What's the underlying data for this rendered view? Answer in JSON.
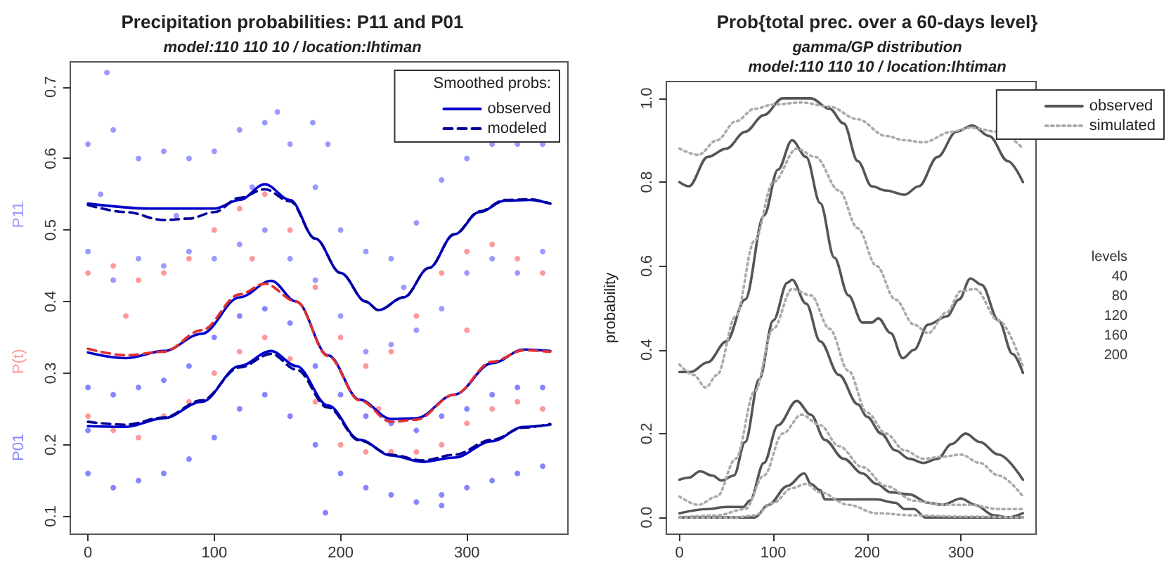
{
  "chart_data": [
    {
      "type": "scatter",
      "title": "Precipitation probabilities: P11 and P01",
      "subtitle": "model:110 110 10 / location:Ihtiman",
      "xlim": [
        -14,
        380
      ],
      "xticks": [
        0,
        100,
        200,
        300
      ],
      "ylim": [
        0.075,
        0.735
      ],
      "yticks": [
        0.1,
        0.2,
        0.3,
        0.4,
        0.5,
        0.6,
        0.7
      ],
      "grid": false,
      "legend": "top right",
      "legend_title": "Smoothed probs:",
      "series": [
        {
          "name": "P11",
          "marker": "circle",
          "color": "#9999ff",
          "x": [
            0,
            0,
            20,
            20,
            40,
            40,
            60,
            60,
            80,
            80,
            100,
            100,
            120,
            120,
            140,
            140,
            160,
            160,
            180,
            180,
            200,
            200,
            220,
            220,
            240,
            240,
            260,
            260,
            280,
            280,
            300,
            300,
            320,
            320,
            340,
            340,
            360,
            360,
            15,
            150,
            178,
            190,
            10,
            70,
            130,
            250
          ],
          "values": [
            0.62,
            0.47,
            0.64,
            0.43,
            0.6,
            0.46,
            0.61,
            0.45,
            0.6,
            0.47,
            0.61,
            0.46,
            0.64,
            0.48,
            0.65,
            0.5,
            0.62,
            0.46,
            0.56,
            0.43,
            0.5,
            0.38,
            0.47,
            0.33,
            0.46,
            0.34,
            0.51,
            0.36,
            0.57,
            0.39,
            0.6,
            0.44,
            0.62,
            0.46,
            0.62,
            0.44,
            0.62,
            0.47,
            0.72,
            0.665,
            0.65,
            0.62,
            0.55,
            0.52,
            0.56,
            0.42
          ]
        },
        {
          "name": "P(t)",
          "marker": "circle",
          "color": "#ff9999",
          "x": [
            0,
            0,
            20,
            20,
            40,
            40,
            60,
            60,
            80,
            80,
            100,
            100,
            120,
            120,
            140,
            140,
            160,
            160,
            180,
            180,
            200,
            200,
            220,
            220,
            240,
            240,
            260,
            260,
            280,
            280,
            300,
            300,
            320,
            320,
            340,
            340,
            360,
            360,
            30,
            130,
            230,
            300
          ],
          "values": [
            0.44,
            0.24,
            0.45,
            0.22,
            0.43,
            0.21,
            0.44,
            0.24,
            0.46,
            0.26,
            0.5,
            0.3,
            0.53,
            0.33,
            0.55,
            0.35,
            0.5,
            0.32,
            0.42,
            0.26,
            0.35,
            0.2,
            0.31,
            0.19,
            0.33,
            0.19,
            0.38,
            0.19,
            0.44,
            0.2,
            0.47,
            0.23,
            0.48,
            0.25,
            0.46,
            0.26,
            0.44,
            0.25,
            0.38,
            0.46,
            0.25,
            0.36
          ]
        },
        {
          "name": "P01",
          "marker": "circle",
          "color": "#8585ff",
          "x": [
            0,
            0,
            0,
            20,
            20,
            40,
            40,
            60,
            60,
            80,
            80,
            100,
            100,
            120,
            120,
            140,
            140,
            160,
            160,
            180,
            180,
            200,
            200,
            220,
            220,
            240,
            240,
            260,
            260,
            280,
            280,
            300,
            300,
            320,
            320,
            340,
            340,
            360,
            360,
            188,
            280
          ],
          "values": [
            0.28,
            0.22,
            0.16,
            0.27,
            0.14,
            0.28,
            0.15,
            0.29,
            0.16,
            0.31,
            0.18,
            0.35,
            0.21,
            0.38,
            0.25,
            0.39,
            0.27,
            0.37,
            0.24,
            0.31,
            0.2,
            0.27,
            0.16,
            0.24,
            0.14,
            0.23,
            0.13,
            0.22,
            0.12,
            0.24,
            0.13,
            0.25,
            0.14,
            0.27,
            0.15,
            0.28,
            0.16,
            0.28,
            0.17,
            0.105,
            0.115
          ]
        },
        {
          "name": "observed",
          "type": "line",
          "marker": "none",
          "line_style": "solid",
          "color": "#0000cc",
          "x": [
            0,
            50,
            100,
            120,
            140,
            160,
            180,
            200,
            220,
            230,
            250,
            270,
            290,
            310,
            330,
            350,
            366
          ],
          "values": [
            0.537,
            0.53,
            0.53,
            0.542,
            0.564,
            0.542,
            0.488,
            0.44,
            0.4,
            0.388,
            0.406,
            0.447,
            0.494,
            0.525,
            0.541,
            0.542,
            0.537
          ]
        },
        {
          "name": "modeled",
          "type": "line",
          "marker": "none",
          "line_style": "dashed",
          "color": "#000099",
          "x": [
            0,
            30,
            60,
            80,
            100,
            120,
            140,
            160,
            180,
            200,
            220,
            230,
            250,
            270,
            290,
            310,
            330,
            350,
            366
          ],
          "values": [
            0.535,
            0.525,
            0.514,
            0.516,
            0.525,
            0.545,
            0.557,
            0.54,
            0.488,
            0.44,
            0.4,
            0.388,
            0.406,
            0.447,
            0.494,
            0.526,
            0.542,
            0.543,
            0.537
          ]
        },
        {
          "type": "line",
          "marker": "none",
          "line_style": "solid",
          "color": "#0000cc",
          "x": [
            0,
            30,
            60,
            90,
            120,
            145,
            165,
            190,
            215,
            240,
            260,
            290,
            320,
            345,
            366
          ],
          "values": [
            0.329,
            0.321,
            0.331,
            0.355,
            0.406,
            0.429,
            0.4,
            0.325,
            0.263,
            0.236,
            0.237,
            0.27,
            0.314,
            0.333,
            0.331
          ]
        },
        {
          "type": "line",
          "marker": "none",
          "line_style": "dashed",
          "color": "#e03030",
          "x": [
            0,
            30,
            60,
            90,
            120,
            140,
            165,
            190,
            215,
            240,
            260,
            290,
            320,
            345,
            366
          ],
          "values": [
            0.334,
            0.325,
            0.33,
            0.36,
            0.41,
            0.425,
            0.4,
            0.324,
            0.262,
            0.232,
            0.235,
            0.27,
            0.316,
            0.332,
            0.33
          ]
        },
        {
          "type": "line",
          "marker": "none",
          "line_style": "solid",
          "color": "#0000cc",
          "x": [
            0,
            30,
            60,
            90,
            120,
            145,
            165,
            190,
            215,
            240,
            265,
            290,
            320,
            345,
            366
          ],
          "values": [
            0.226,
            0.225,
            0.237,
            0.26,
            0.31,
            0.331,
            0.31,
            0.255,
            0.207,
            0.185,
            0.176,
            0.182,
            0.205,
            0.225,
            0.228
          ]
        },
        {
          "type": "line",
          "marker": "none",
          "line_style": "dashed",
          "color": "#000099",
          "x": [
            0,
            30,
            60,
            90,
            120,
            145,
            165,
            190,
            215,
            240,
            265,
            290,
            320,
            345,
            366
          ],
          "values": [
            0.232,
            0.228,
            0.238,
            0.262,
            0.308,
            0.327,
            0.305,
            0.252,
            0.206,
            0.186,
            0.178,
            0.186,
            0.207,
            0.224,
            0.229
          ]
        }
      ]
    },
    {
      "type": "line",
      "title": "Prob{total prec. over a 60-days level}",
      "subtitle": "gamma/GP distribution\nmodel:110 110 10 / location:Ihtiman",
      "ylabel": "probability",
      "xlim": [
        -14,
        380
      ],
      "xticks": [
        0,
        100,
        200,
        300
      ],
      "ylim": [
        -0.04,
        1.04
      ],
      "yticks": [
        {
          "value": 0,
          "label": "0.0"
        },
        0.2,
        0.4,
        0.6,
        0.8,
        {
          "value": 1,
          "label": "1.0"
        }
      ],
      "grid": false,
      "legend": "right",
      "annotations": [
        "levels",
        "40",
        "80",
        "120",
        "160",
        "200"
      ],
      "series": [
        {
          "name": "observed",
          "line_style": "solid",
          "color": "#555555",
          "x": [
            0,
            10,
            30,
            50,
            70,
            90,
            110,
            140,
            160,
            175,
            190,
            205,
            220,
            240,
            255,
            275,
            295,
            312,
            330,
            350,
            366
          ],
          "values": [
            0.8,
            0.79,
            0.86,
            0.88,
            0.92,
            0.96,
            1.0,
            1.0,
            0.975,
            0.94,
            0.85,
            0.79,
            0.78,
            0.77,
            0.79,
            0.86,
            0.92,
            0.935,
            0.91,
            0.85,
            0.8
          ]
        },
        {
          "name": "simulated",
          "line_style": "dotted",
          "color": "#aaaaaa",
          "x": [
            0,
            20,
            40,
            60,
            80,
            100,
            130,
            160,
            190,
            220,
            240,
            260,
            290,
            310,
            340,
            366
          ],
          "values": [
            0.88,
            0.865,
            0.9,
            0.945,
            0.975,
            0.985,
            0.99,
            0.98,
            0.95,
            0.91,
            0.9,
            0.895,
            0.92,
            0.93,
            0.92,
            0.88
          ]
        },
        {
          "line_style": "solid",
          "color": "#555555",
          "x": [
            0,
            12,
            30,
            50,
            70,
            90,
            105,
            120,
            135,
            150,
            165,
            180,
            195,
            205,
            212,
            225,
            238,
            250,
            265,
            285,
            298,
            310,
            322,
            340,
            355,
            366
          ],
          "values": [
            0.347,
            0.347,
            0.37,
            0.42,
            0.52,
            0.72,
            0.83,
            0.9,
            0.86,
            0.75,
            0.62,
            0.53,
            0.465,
            0.465,
            0.475,
            0.44,
            0.38,
            0.4,
            0.46,
            0.48,
            0.52,
            0.57,
            0.555,
            0.47,
            0.39,
            0.345
          ]
        },
        {
          "line_style": "dotted",
          "color": "#aaaaaa",
          "x": [
            0,
            15,
            28,
            40,
            60,
            80,
            100,
            125,
            145,
            170,
            190,
            210,
            230,
            250,
            265,
            285,
            300,
            315,
            340,
            366
          ],
          "values": [
            0.365,
            0.34,
            0.31,
            0.34,
            0.48,
            0.66,
            0.8,
            0.88,
            0.86,
            0.78,
            0.69,
            0.6,
            0.52,
            0.46,
            0.44,
            0.49,
            0.54,
            0.545,
            0.47,
            0.36
          ]
        },
        {
          "line_style": "solid",
          "color": "#555555",
          "x": [
            0,
            10,
            22,
            35,
            45,
            58,
            70,
            85,
            100,
            115,
            120,
            135,
            150,
            170,
            190,
            200,
            215,
            230,
            245,
            260,
            275,
            290,
            305,
            320,
            340,
            366
          ],
          "values": [
            0.09,
            0.095,
            0.11,
            0.1,
            0.088,
            0.1,
            0.18,
            0.33,
            0.47,
            0.56,
            0.567,
            0.51,
            0.42,
            0.34,
            0.27,
            0.24,
            0.2,
            0.16,
            0.14,
            0.13,
            0.14,
            0.175,
            0.2,
            0.18,
            0.15,
            0.09
          ]
        },
        {
          "line_style": "dotted",
          "color": "#aaaaaa",
          "x": [
            0,
            20,
            40,
            60,
            80,
            100,
            120,
            140,
            160,
            180,
            200,
            220,
            240,
            260,
            280,
            300,
            320,
            340,
            366
          ],
          "values": [
            0.05,
            0.03,
            0.05,
            0.14,
            0.3,
            0.45,
            0.545,
            0.53,
            0.45,
            0.35,
            0.25,
            0.2,
            0.16,
            0.14,
            0.145,
            0.15,
            0.13,
            0.1,
            0.05
          ]
        },
        {
          "line_style": "solid",
          "color": "#555555",
          "x": [
            0,
            30,
            50,
            68,
            75,
            90,
            105,
            125,
            140,
            155,
            175,
            195,
            210,
            225,
            245,
            265,
            280,
            300,
            315,
            335,
            350,
            366
          ],
          "values": [
            0.01,
            0.02,
            0.025,
            0.025,
            0.04,
            0.13,
            0.22,
            0.278,
            0.245,
            0.185,
            0.14,
            0.105,
            0.08,
            0.06,
            0.055,
            0.035,
            0.03,
            0.045,
            0.03,
            0.005,
            0.0,
            0.01
          ]
        },
        {
          "line_style": "dotted",
          "color": "#aaaaaa",
          "x": [
            0,
            40,
            70,
            90,
            110,
            130,
            150,
            170,
            195,
            220,
            250,
            280,
            310,
            340,
            366
          ],
          "values": [
            0.0,
            0.005,
            0.02,
            0.1,
            0.2,
            0.245,
            0.22,
            0.17,
            0.12,
            0.075,
            0.04,
            0.03,
            0.03,
            0.02,
            0.02
          ]
        },
        {
          "line_style": "solid",
          "color": "#555555",
          "x": [
            0,
            80,
            95,
            115,
            133,
            140,
            150,
            155,
            210,
            230,
            240,
            250,
            262,
            366
          ],
          "values": [
            0.0,
            0.0,
            0.03,
            0.075,
            0.105,
            0.08,
            0.065,
            0.043,
            0.043,
            0.035,
            0.02,
            0.02,
            0.0,
            0.0
          ]
        },
        {
          "line_style": "dotted",
          "color": "#aaaaaa",
          "x": [
            0,
            60,
            80,
            100,
            120,
            135,
            150,
            180,
            210,
            250,
            300,
            366
          ],
          "values": [
            0.0,
            0.0,
            0.005,
            0.035,
            0.07,
            0.08,
            0.06,
            0.03,
            0.01,
            0.005,
            0.002,
            0.0
          ]
        }
      ]
    }
  ]
}
